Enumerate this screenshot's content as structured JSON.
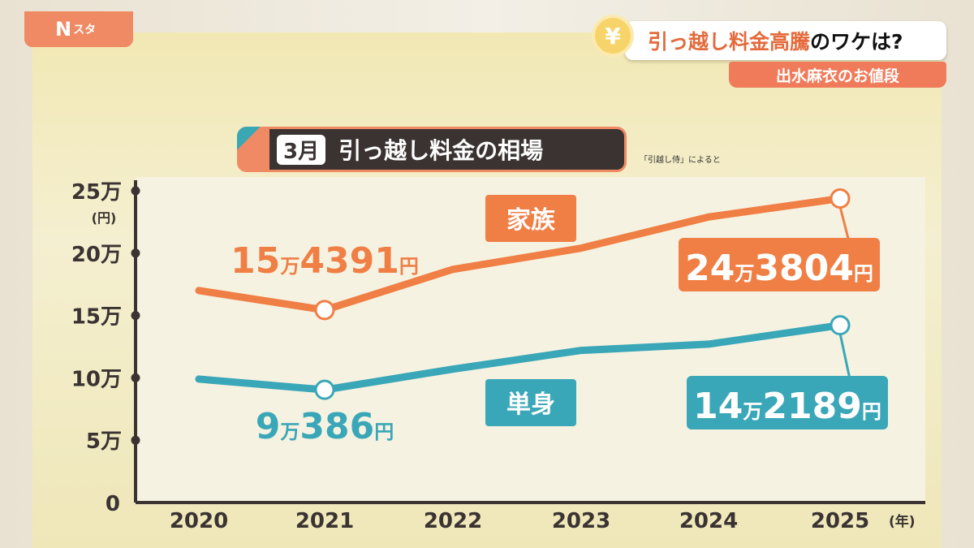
{
  "broadcast": {
    "logo": "N",
    "logo_sub": "スタ",
    "headline_orange": "引っ越し料金高騰",
    "headline_black": "のワケは?",
    "yen_icon": "¥",
    "segment": "出水麻衣のお値段"
  },
  "chart_data": {
    "type": "line",
    "title_badge": "3月",
    "title": "引っ越し料金の相場",
    "source": "「引越し侍」によると",
    "x": [
      "2020",
      "2021",
      "2022",
      "2023",
      "2024",
      "2025"
    ],
    "xunit": "(年)",
    "yunit": "(円)",
    "ylim": [
      0,
      250000
    ],
    "yticks": [
      {
        "value": 0,
        "label": "0"
      },
      {
        "value": 50000,
        "label": "5万"
      },
      {
        "value": 100000,
        "label": "10万"
      },
      {
        "value": 150000,
        "label": "15万"
      },
      {
        "value": 200000,
        "label": "20万"
      },
      {
        "value": 250000,
        "label": "25万"
      }
    ],
    "grid": false,
    "series": [
      {
        "name": "家族",
        "color": "#f07f45",
        "values": [
          170000,
          154391,
          187000,
          204000,
          229000,
          243804
        ],
        "annotations": [
          {
            "index": 1,
            "num1": "15",
            "unit1": "万",
            "num2": "4391",
            "unit2": "円"
          },
          {
            "index": 5,
            "num1": "24",
            "unit1": "万",
            "num2": "3804",
            "unit2": "円"
          }
        ]
      },
      {
        "name": "単身",
        "color": "#3aa7b8",
        "values": [
          99000,
          90386,
          107000,
          122000,
          127000,
          142189
        ],
        "annotations": [
          {
            "index": 1,
            "num1": "9",
            "unit1": "万",
            "num2": "386",
            "unit2": "円"
          },
          {
            "index": 5,
            "num1": "14",
            "unit1": "万",
            "num2": "2189",
            "unit2": "円"
          }
        ]
      }
    ]
  }
}
